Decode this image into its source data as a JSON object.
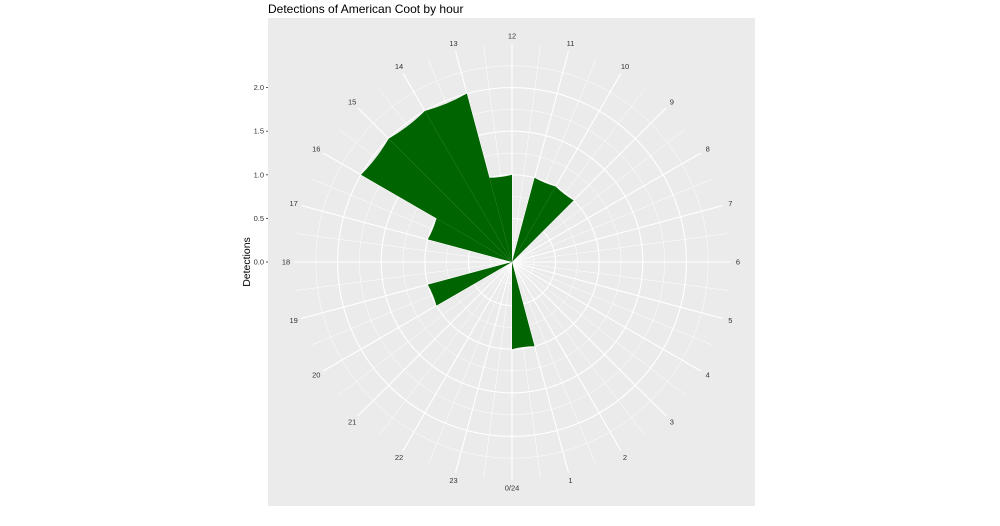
{
  "chart_data": {
    "type": "bar",
    "coord": "polar",
    "title": "Detections of American Coot by hour",
    "xlabel": "",
    "ylabel": "Detections",
    "ylim": [
      0,
      2.5
    ],
    "y_ticks": [
      0.0,
      0.5,
      1.0,
      1.5,
      2.0
    ],
    "y_tick_labels": [
      "0.0",
      "0.5",
      "1.0",
      "1.5",
      "2.0"
    ],
    "categories": [
      "0/24",
      "1",
      "2",
      "3",
      "4",
      "5",
      "6",
      "7",
      "8",
      "9",
      "10",
      "11",
      "12",
      "13",
      "14",
      "15",
      "16",
      "17",
      "18",
      "19",
      "20",
      "21",
      "22",
      "23"
    ],
    "values": [
      1,
      0,
      0,
      0,
      0,
      0,
      0,
      0,
      0,
      1,
      1,
      0,
      1,
      2,
      2,
      2,
      1,
      0,
      0,
      1,
      0,
      0,
      0,
      0
    ],
    "colors": {
      "bar": "#006400",
      "panel": "#ebebeb",
      "grid": "#ffffff"
    },
    "grid": true,
    "legend": "none"
  }
}
